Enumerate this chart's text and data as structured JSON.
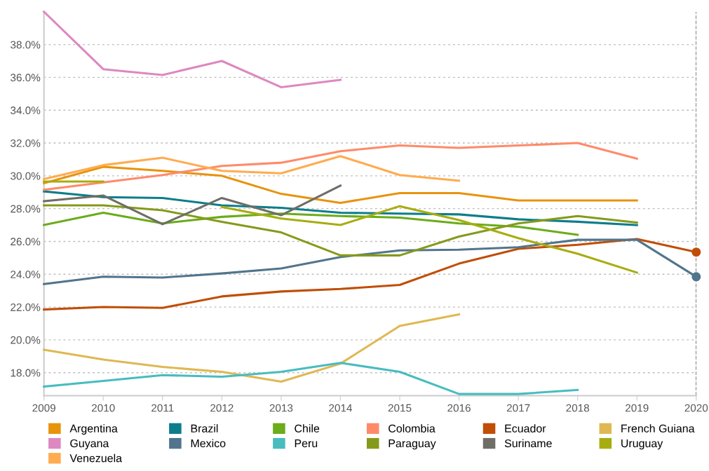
{
  "chart_data": {
    "type": "line",
    "x": [
      2009,
      2010,
      2011,
      2012,
      2013,
      2014,
      2015,
      2016,
      2017,
      2018,
      2019,
      2020
    ],
    "series": [
      {
        "name": "Argentina",
        "color": "#e8930c",
        "values": [
          29.55,
          30.55,
          30.3,
          30.0,
          28.9,
          28.35,
          28.95,
          28.95,
          28.5,
          28.5,
          28.5,
          null
        ]
      },
      {
        "name": "Brazil",
        "color": "#0d7d8a",
        "values": [
          29.05,
          28.7,
          28.65,
          28.2,
          28.05,
          27.75,
          27.7,
          27.65,
          27.35,
          27.2,
          27.0,
          null
        ]
      },
      {
        "name": "Chile",
        "color": "#6aac1a",
        "values": [
          27.0,
          27.75,
          27.1,
          27.5,
          27.7,
          27.55,
          27.45,
          27.1,
          26.9,
          26.4,
          null,
          null
        ]
      },
      {
        "name": "Colombia",
        "color": "#ff8a6a",
        "values": [
          29.15,
          29.6,
          30.05,
          30.6,
          30.8,
          31.5,
          31.85,
          31.7,
          31.85,
          32.0,
          31.05,
          null
        ]
      },
      {
        "name": "Ecuador",
        "color": "#c04e06",
        "values": [
          21.85,
          22.0,
          21.95,
          22.65,
          22.95,
          23.1,
          23.35,
          24.65,
          25.55,
          25.8,
          26.15,
          25.35
        ]
      },
      {
        "name": "French Guiana",
        "color": "#dfb853",
        "values": [
          19.4,
          18.8,
          18.35,
          18.05,
          17.45,
          18.55,
          20.85,
          21.55,
          null,
          null,
          null,
          null
        ]
      },
      {
        "name": "Guyana",
        "color": "#dd88c0",
        "values": [
          40.0,
          36.5,
          36.15,
          37.0,
          35.4,
          35.85,
          null,
          null,
          null,
          null,
          null,
          null
        ]
      },
      {
        "name": "Mexico",
        "color": "#51758c",
        "values": [
          23.4,
          23.85,
          23.8,
          24.05,
          24.35,
          25.05,
          25.45,
          25.5,
          25.65,
          26.1,
          26.1,
          23.85
        ]
      },
      {
        "name": "Peru",
        "color": "#48bcbf",
        "values": [
          17.15,
          17.5,
          17.85,
          17.75,
          18.05,
          18.6,
          18.05,
          16.7,
          16.7,
          16.95,
          null,
          null
        ]
      },
      {
        "name": "Paraguay",
        "color": "#859a1b",
        "values": [
          28.2,
          28.2,
          27.9,
          27.2,
          26.55,
          25.15,
          25.15,
          26.3,
          27.1,
          27.55,
          27.15,
          null
        ]
      },
      {
        "name": "Suriname",
        "color": "#6e6e66",
        "values": [
          28.45,
          28.8,
          27.05,
          28.65,
          27.6,
          29.4,
          null,
          null,
          null,
          null,
          null,
          null
        ]
      },
      {
        "name": "Uruguay",
        "color": "#a7ad0f",
        "values": [
          29.65,
          29.65,
          null,
          28.1,
          27.4,
          27.0,
          28.15,
          27.3,
          26.2,
          25.25,
          24.1,
          null
        ]
      },
      {
        "name": "Venezuela",
        "color": "#ffab4f",
        "values": [
          29.8,
          30.65,
          31.1,
          30.3,
          30.15,
          31.2,
          30.05,
          29.7,
          null,
          null,
          null,
          null
        ]
      },
      {
        "type": "scatter",
        "color": "#c04e06",
        "x": [
          2020
        ],
        "values": [
          25.35
        ],
        "marker": "circle"
      },
      {
        "type": "scatter",
        "color": "#51758c",
        "x": [
          2020
        ],
        "values": [
          23.85
        ],
        "marker": "circle"
      }
    ],
    "xlim": [
      2009,
      2020
    ],
    "xticks": [
      2009,
      2010,
      2011,
      2012,
      2013,
      2014,
      2015,
      2016,
      2017,
      2018,
      2019,
      2020
    ],
    "ylim": [
      16.6,
      40.0
    ],
    "yticks": [
      {
        "value": 18,
        "label": "18.0%"
      },
      {
        "value": 20,
        "label": "20.0%"
      },
      {
        "value": 22,
        "label": "22.0%"
      },
      {
        "value": 24,
        "label": "24.0%"
      },
      {
        "value": 26,
        "label": "26.0%"
      },
      {
        "value": 28,
        "label": "28.0%"
      },
      {
        "value": 30,
        "label": "30.0%"
      },
      {
        "value": 32,
        "label": "32.0%"
      },
      {
        "value": 34,
        "label": "34.0%"
      },
      {
        "value": 36,
        "label": "36.0%"
      },
      {
        "value": 38,
        "label": "38.0%"
      }
    ],
    "ref_lines": [
      {
        "axis": "x",
        "value": 2020,
        "color": "#555555",
        "line_style": "dashed"
      }
    ],
    "grid": "y",
    "legend": "bottom",
    "marker": "none",
    "line_style": "solid"
  }
}
